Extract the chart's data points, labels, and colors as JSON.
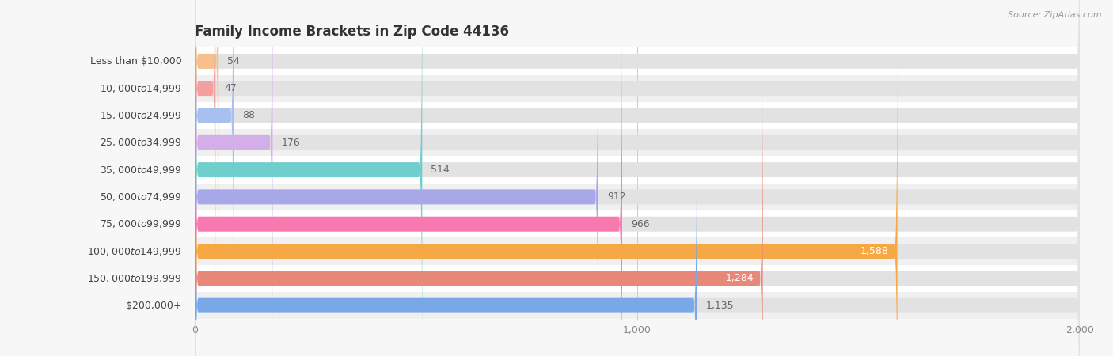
{
  "title": "Family Income Brackets in Zip Code 44136",
  "source": "Source: ZipAtlas.com",
  "categories": [
    "Less than $10,000",
    "$10,000 to $14,999",
    "$15,000 to $24,999",
    "$25,000 to $34,999",
    "$35,000 to $49,999",
    "$50,000 to $74,999",
    "$75,000 to $99,999",
    "$100,000 to $149,999",
    "$150,000 to $199,999",
    "$200,000+"
  ],
  "values": [
    54,
    47,
    88,
    176,
    514,
    912,
    966,
    1588,
    1284,
    1135
  ],
  "bar_colors": [
    "#f5c08a",
    "#f4a0a0",
    "#a8c0f0",
    "#d4aee8",
    "#6ecfcc",
    "#a8a8e8",
    "#f878b0",
    "#f5a844",
    "#e88878",
    "#78a8e8"
  ],
  "xlim": [
    0,
    2000
  ],
  "xticks": [
    0,
    1000,
    2000
  ],
  "xtick_labels": [
    "0",
    "1,000",
    "2,000"
  ],
  "background_color": "#f7f7f7",
  "row_colors": [
    "#ffffff",
    "#f0f0f0"
  ],
  "bar_bg_color": "#e2e2e2",
  "title_fontsize": 12,
  "label_fontsize": 9,
  "value_fontsize": 9,
  "bar_height": 0.55,
  "rounding_size": 8
}
